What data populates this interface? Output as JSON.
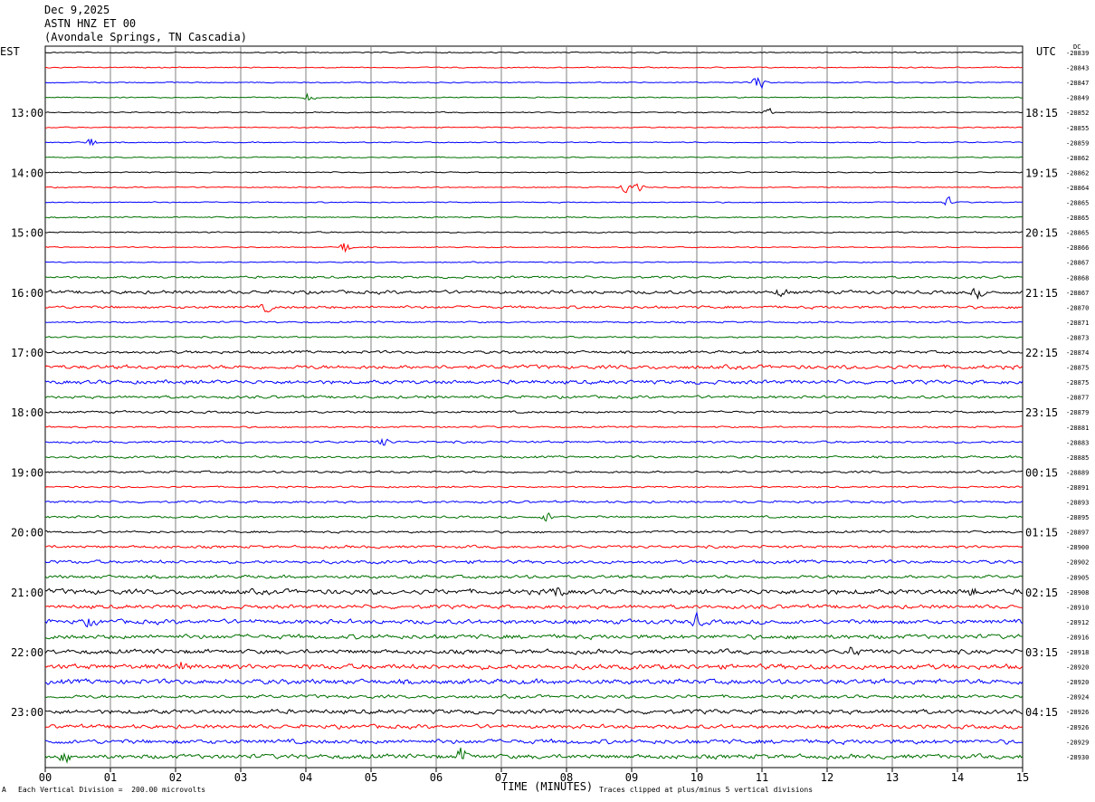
{
  "header": {
    "date": "Dec 9,2025",
    "station": "ASTN HNZ ET 00",
    "location": "(Avondale Springs, TN Cascadia)"
  },
  "left_zone": "EST",
  "right_zone": "UTC",
  "dc_label": "DC",
  "footer": {
    "scale_note": "Each Vertical Division =  200.00 microvolts",
    "clip_note": "Traces clipped at plus/minus 5 vertical divisions",
    "corner_mark": "A"
  },
  "colors": {
    "cycle": [
      "#000000",
      "#ff0000",
      "#0000ff",
      "#007000"
    ],
    "grid": "#808080"
  },
  "chart_data": {
    "type": "helicorder",
    "xlabel": "TIME (MINUTES)",
    "xlim": [
      0,
      15
    ],
    "x_ticks": [
      "00",
      "01",
      "02",
      "03",
      "04",
      "05",
      "06",
      "07",
      "08",
      "09",
      "10",
      "11",
      "12",
      "13",
      "14",
      "15"
    ],
    "left_hour_labels": [
      "13:00",
      "14:00",
      "15:00",
      "16:00",
      "17:00",
      "18:00",
      "19:00",
      "20:00",
      "21:00",
      "22:00",
      "23:00"
    ],
    "right_hour_labels": [
      "18:15",
      "19:15",
      "20:15",
      "21:15",
      "22:15",
      "23:15",
      "00:15",
      "01:15",
      "02:15",
      "03:15",
      "04:15"
    ],
    "row_dc_values": [
      "-28839",
      "-28843",
      "-28847",
      "-28849",
      "-28852",
      "-28855",
      "-28859",
      "-28862",
      "-28862",
      "-28864",
      "-28865",
      "-28865",
      "-28865",
      "-28866",
      "-28867",
      "-28868",
      "-28867",
      "-28870",
      "-28871",
      "-28873",
      "-28874",
      "-28875",
      "-28875",
      "-28877",
      "-28879",
      "-28881",
      "-28883",
      "-28885",
      "-28889",
      "-28891",
      "-28893",
      "-28895",
      "-28897",
      "-28900",
      "-28902",
      "-28905",
      "-28908",
      "-28910",
      "-28912",
      "-28916",
      "-28918",
      "-28920",
      "-28920",
      "-28924",
      "-28926",
      "-28926",
      "-28929",
      "-28930"
    ],
    "row_noise_amplitude": [
      1,
      1,
      1,
      1,
      1,
      1,
      1,
      1,
      1,
      1,
      1,
      1.2,
      1.2,
      1,
      1,
      2,
      3,
      2.5,
      1.5,
      1.5,
      2.5,
      3.5,
      3.5,
      2.5,
      2,
      1.5,
      2,
      2,
      2,
      1.5,
      2,
      2,
      2,
      2.5,
      3,
      3,
      4.5,
      3.5,
      4,
      4,
      4,
      4.5,
      4.5,
      3,
      4,
      3.5,
      4,
      4
    ],
    "events": [
      {
        "row": 3,
        "minute": 4.05,
        "amp": 8
      },
      {
        "row": 2,
        "minute": 10.95,
        "amp": 18
      },
      {
        "row": 4,
        "minute": 11.1,
        "amp": 6
      },
      {
        "row": 6,
        "minute": 0.7,
        "amp": 10
      },
      {
        "row": 9,
        "minute": 8.9,
        "amp": 10
      },
      {
        "row": 9,
        "minute": 9.1,
        "amp": 7
      },
      {
        "row": 10,
        "minute": 13.85,
        "amp": 8
      },
      {
        "row": 13,
        "minute": 4.6,
        "amp": 12
      },
      {
        "row": 16,
        "minute": 11.3,
        "amp": 8
      },
      {
        "row": 16,
        "minute": 14.3,
        "amp": 8
      },
      {
        "row": 17,
        "minute": 3.4,
        "amp": 7
      },
      {
        "row": 26,
        "minute": 5.2,
        "amp": 7
      },
      {
        "row": 31,
        "minute": 7.7,
        "amp": 8
      },
      {
        "row": 36,
        "minute": 7.85,
        "amp": 9
      },
      {
        "row": 36,
        "minute": 14.2,
        "amp": 9
      },
      {
        "row": 38,
        "minute": 10.0,
        "amp": 10
      },
      {
        "row": 38,
        "minute": 0.7,
        "amp": 8
      },
      {
        "row": 40,
        "minute": 12.4,
        "amp": 10
      },
      {
        "row": 41,
        "minute": 2.1,
        "amp": 9
      },
      {
        "row": 47,
        "minute": 6.4,
        "amp": 14
      },
      {
        "row": 47,
        "minute": 0.3,
        "amp": 8
      }
    ]
  }
}
